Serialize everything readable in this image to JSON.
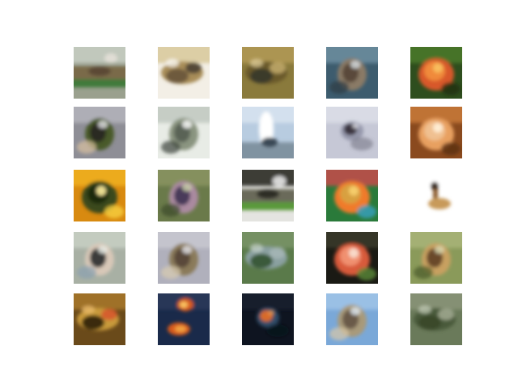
{
  "grid": {
    "rows": 5,
    "cols": 5,
    "tiles": [
      {
        "bg": "#9aa08e",
        "top": "#c8cfc4",
        "mid": "#7a6a4a",
        "blob": "#5c4a36",
        "accent": "#3f7a3a",
        "hi": "#e8e4dc",
        "shape": "band"
      },
      {
        "bg": "#f3efe6",
        "top": "#d8c89a",
        "mid": "#a88d58",
        "blob": "#6e5a3c",
        "accent": "#3e3a30",
        "hi": "#ffffff",
        "shape": "smear"
      },
      {
        "bg": "#8a7a3c",
        "top": "#b39a56",
        "mid": "#6b5a2a",
        "blob": "#3a3a2a",
        "accent": "#c8b070",
        "hi": "#e2d2a0",
        "shape": "smear"
      },
      {
        "bg": "#3d5c6e",
        "top": "#6c8ea0",
        "mid": "#8a7a66",
        "blob": "#5a4a3a",
        "accent": "#2c3a44",
        "hi": "#d6dde2",
        "shape": "center"
      },
      {
        "bg": "#2e4e1e",
        "top": "#4a7a2a",
        "mid": "#d8582a",
        "blob": "#f08a3a",
        "accent": "#1e2e12",
        "hi": "#f8c060",
        "shape": "flower"
      },
      {
        "bg": "#8e8e96",
        "top": "#b4b4bc",
        "mid": "#4a5a2a",
        "blob": "#2c2c22",
        "accent": "#d8c0a0",
        "hi": "#e4e4e8",
        "shape": "center"
      },
      {
        "bg": "#e8ece6",
        "top": "#c0c8c0",
        "mid": "#8a9480",
        "blob": "#5a6456",
        "accent": "#3a443a",
        "hi": "#ffffff",
        "shape": "center"
      },
      {
        "bg": "#b8cce0",
        "top": "#d8e4f0",
        "mid": "#ffffff",
        "blob": "#6a7a86",
        "accent": "#3a4a56",
        "hi": "#f4f8fc",
        "shape": "tall"
      },
      {
        "bg": "#c6c8d6",
        "top": "#dcdee8",
        "mid": "#8a8ca0",
        "blob": "#3a3640",
        "accent": "#6a6a78",
        "hi": "#eeeef4",
        "shape": "dot"
      },
      {
        "bg": "#8a4a1e",
        "top": "#c87a3a",
        "mid": "#e8a060",
        "blob": "#f0c090",
        "accent": "#5a2e12",
        "hi": "#fff0d8",
        "shape": "flower"
      },
      {
        "bg": "#d88a10",
        "top": "#f0b020",
        "mid": "#3a4a1a",
        "blob": "#1e2a0e",
        "accent": "#f8d040",
        "hi": "#fff0a0",
        "shape": "flower"
      },
      {
        "bg": "#6a7a4a",
        "top": "#8a9462",
        "mid": "#aa8aa0",
        "blob": "#4a3a5a",
        "accent": "#3a4a2a",
        "hi": "#c8d0a8",
        "shape": "center"
      },
      {
        "bg": "#e4e4e0",
        "top": "#1e1e1a",
        "mid": "#6a6a5a",
        "blob": "#2e2e26",
        "accent": "#5a9a3a",
        "hi": "#ffffff",
        "shape": "band"
      },
      {
        "bg": "#2a7a3a",
        "top": "#c84a4a",
        "mid": "#f07a2a",
        "blob": "#d8a040",
        "accent": "#3aa0c0",
        "hi": "#f8d070",
        "shape": "flower"
      },
      {
        "bg": "#ffffff",
        "top": "#ffffff",
        "mid": "#c89a5a",
        "blob": "#8a5a2a",
        "accent": "#3a2a1a",
        "hi": "#ffffff",
        "shape": "small"
      },
      {
        "bg": "#a8b0a4",
        "top": "#c8d0c4",
        "mid": "#d8c8b8",
        "blob": "#3a3a3a",
        "accent": "#8aa0b0",
        "hi": "#e8ece6",
        "shape": "center"
      },
      {
        "bg": "#b0b0bc",
        "top": "#c8c8d0",
        "mid": "#8a7a5a",
        "blob": "#5a4a3a",
        "accent": "#d8ccb0",
        "hi": "#e4e4ea",
        "shape": "center"
      },
      {
        "bg": "#5a7a4a",
        "top": "#7a9468",
        "mid": "#8aa0a0",
        "blob": "#3a5a3a",
        "accent": "#a8b8b8",
        "hi": "#c8d4cc",
        "shape": "smear"
      },
      {
        "bg": "#1a1a14",
        "top": "#3a3a2a",
        "mid": "#d85a3a",
        "blob": "#f09070",
        "accent": "#5a8a3a",
        "hi": "#f8e0d0",
        "shape": "flower"
      },
      {
        "bg": "#8a9a5a",
        "top": "#a8b478",
        "mid": "#c8a060",
        "blob": "#6a4a2a",
        "accent": "#4a5a2a",
        "hi": "#d8d8b0",
        "shape": "center"
      },
      {
        "bg": "#6a4a1a",
        "top": "#a8782a",
        "mid": "#c89a3a",
        "blob": "#3a2a10",
        "accent": "#d8502a",
        "hi": "#f0c070",
        "shape": "smear"
      },
      {
        "bg": "#1a2a4a",
        "top": "#2a3a5a",
        "mid": "#d85a1a",
        "blob": "#f0a040",
        "accent": "#0e1a2e",
        "hi": "#f8c060",
        "shape": "fire"
      },
      {
        "bg": "#0e1420",
        "top": "#1a2030",
        "mid": "#3a5a7a",
        "blob": "#d86a2a",
        "accent": "#0a0e14",
        "hi": "#f0a050",
        "shape": "dot"
      },
      {
        "bg": "#7aa8d8",
        "top": "#a0c4e8",
        "mid": "#a89a7a",
        "blob": "#6a5a4a",
        "accent": "#d8c8a8",
        "hi": "#e0eaf4",
        "shape": "center"
      },
      {
        "bg": "#6a7a5a",
        "top": "#8a9478",
        "mid": "#4a5a3a",
        "blob": "#3a4a2a",
        "accent": "#a8b098",
        "hi": "#c8d0bc",
        "shape": "smear"
      }
    ]
  }
}
